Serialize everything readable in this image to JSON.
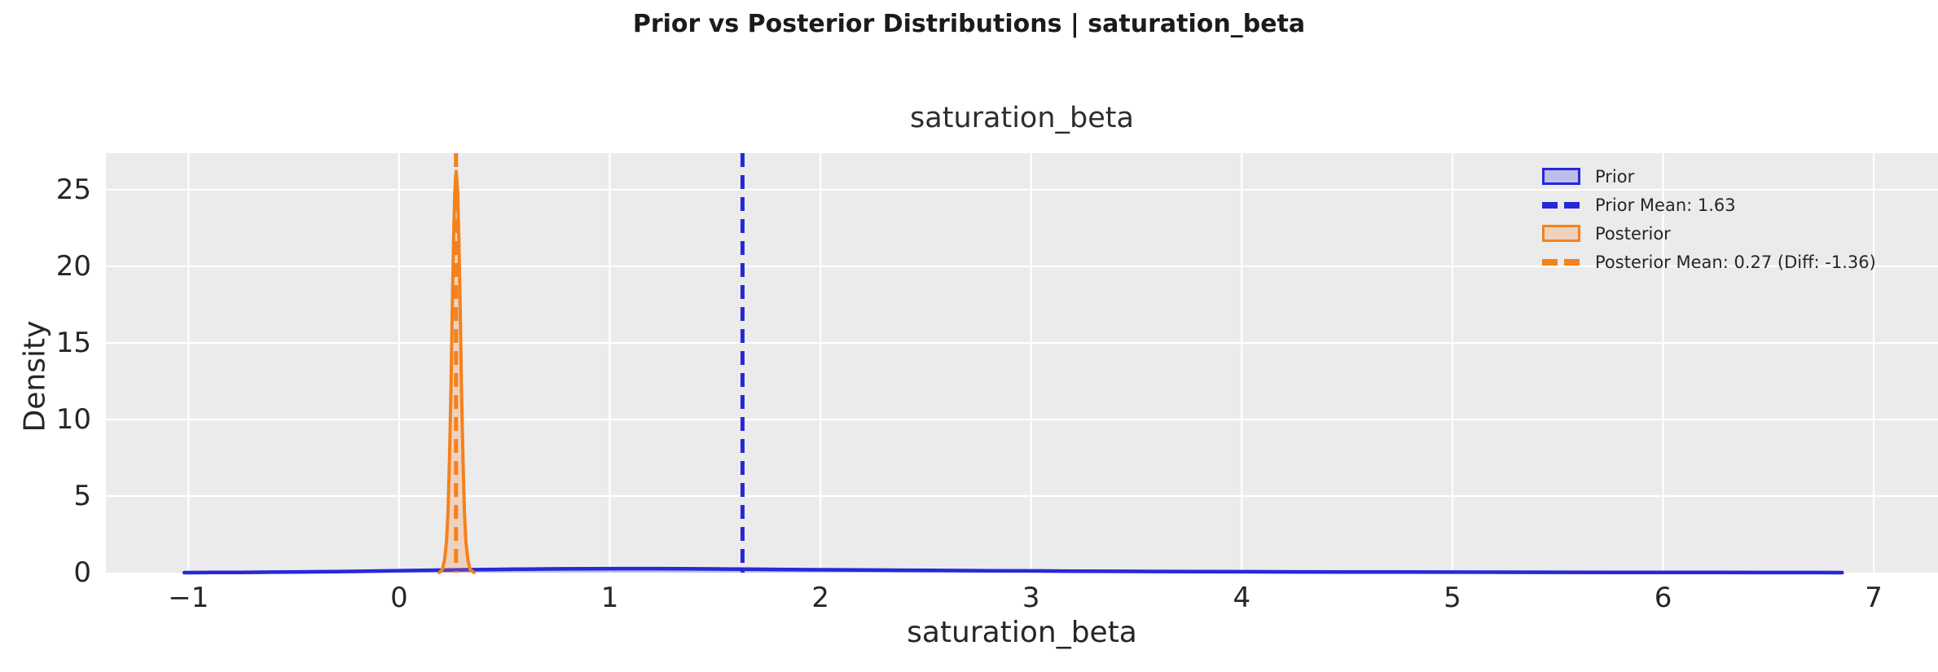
{
  "figure": {
    "title": "Prior vs Posterior Distributions | saturation_beta"
  },
  "axes": {
    "title": "saturation_beta",
    "xlabel": "saturation_beta",
    "ylabel": "Density"
  },
  "colors": {
    "plot_background": "#ebebeb",
    "grid": "#ffffff",
    "prior_line": "#2828d9",
    "prior_fill": "rgba(55,55,225,0.25)",
    "posterior_line": "#f5811c",
    "posterior_fill": "rgba(245,140,60,0.25)",
    "text": "#262626"
  },
  "chart_data": {
    "type": "area",
    "title": "saturation_beta",
    "xlabel": "saturation_beta",
    "ylabel": "Density",
    "xlim": [
      -1.392,
      7.305
    ],
    "ylim": [
      0,
      27.39
    ],
    "grid": true,
    "legend_position": "upper right",
    "xticks": {
      "values": [
        -1,
        0,
        1,
        2,
        3,
        4,
        5,
        6,
        7
      ],
      "labels": [
        "−1",
        "0",
        "1",
        "2",
        "3",
        "4",
        "5",
        "6",
        "7"
      ]
    },
    "yticks": {
      "values": [
        0,
        5,
        10,
        15,
        20,
        25
      ],
      "labels": [
        "0",
        "5",
        "10",
        "15",
        "20",
        "25"
      ]
    },
    "series": [
      {
        "name": "Prior",
        "kind": "kde",
        "line_color": "#2828d9",
        "fill_color": "rgba(55,55,225,0.25)",
        "line_width": 4.5,
        "points": [
          [
            -1.02,
            0
          ],
          [
            -0.9,
            0.008
          ],
          [
            -0.75,
            0.018
          ],
          [
            -0.6,
            0.032
          ],
          [
            -0.45,
            0.05
          ],
          [
            -0.3,
            0.07
          ],
          [
            -0.15,
            0.095
          ],
          [
            0,
            0.125
          ],
          [
            0.15,
            0.155
          ],
          [
            0.3,
            0.185
          ],
          [
            0.45,
            0.21
          ],
          [
            0.6,
            0.23
          ],
          [
            0.75,
            0.245
          ],
          [
            0.9,
            0.255
          ],
          [
            1.05,
            0.26
          ],
          [
            1.2,
            0.258
          ],
          [
            1.35,
            0.25
          ],
          [
            1.5,
            0.238
          ],
          [
            1.65,
            0.222
          ],
          [
            1.8,
            0.205
          ],
          [
            2,
            0.185
          ],
          [
            2.2,
            0.168
          ],
          [
            2.4,
            0.152
          ],
          [
            2.6,
            0.138
          ],
          [
            2.8,
            0.124
          ],
          [
            3,
            0.11
          ],
          [
            3.2,
            0.098
          ],
          [
            3.4,
            0.086
          ],
          [
            3.6,
            0.076
          ],
          [
            3.8,
            0.066
          ],
          [
            4,
            0.058
          ],
          [
            4.25,
            0.05
          ],
          [
            4.5,
            0.043
          ],
          [
            4.75,
            0.037
          ],
          [
            5,
            0.032
          ],
          [
            5.25,
            0.027
          ],
          [
            5.5,
            0.022
          ],
          [
            5.75,
            0.018
          ],
          [
            6,
            0.014
          ],
          [
            6.25,
            0.01
          ],
          [
            6.5,
            0.006
          ],
          [
            6.7,
            0.003
          ],
          [
            6.85,
            0
          ]
        ]
      },
      {
        "name": "Posterior",
        "kind": "kde",
        "line_color": "#f5811c",
        "fill_color": "rgba(245,140,60,0.25)",
        "line_width": 4,
        "points": [
          [
            0.19,
            0
          ],
          [
            0.205,
            0.2
          ],
          [
            0.215,
            0.8
          ],
          [
            0.225,
            2
          ],
          [
            0.232,
            4
          ],
          [
            0.239,
            7.5
          ],
          [
            0.246,
            12
          ],
          [
            0.252,
            17
          ],
          [
            0.258,
            21.5
          ],
          [
            0.264,
            24.8
          ],
          [
            0.271,
            26.2
          ],
          [
            0.278,
            24.8
          ],
          [
            0.284,
            21.5
          ],
          [
            0.29,
            17
          ],
          [
            0.296,
            12
          ],
          [
            0.303,
            7.5
          ],
          [
            0.31,
            4
          ],
          [
            0.317,
            2
          ],
          [
            0.327,
            0.8
          ],
          [
            0.337,
            0.2
          ],
          [
            0.355,
            0
          ]
        ]
      }
    ],
    "vlines": [
      {
        "name": "prior-mean-line",
        "x": 1.63,
        "color": "#2828d9",
        "style": "dashed",
        "label": "Prior Mean: 1.63"
      },
      {
        "name": "posterior-mean-line",
        "x": 0.27,
        "color": "#f5811c",
        "style": "dashed",
        "label": "Posterior Mean: 0.27 (Diff: -1.36)"
      }
    ],
    "stats": {
      "prior_mean": 1.63,
      "posterior_mean": 0.27,
      "difference": -1.36
    },
    "legend": [
      {
        "swatch": "patch",
        "line_color": "#2828d9",
        "fill_color": "rgba(55,55,225,0.25)",
        "label": "Prior"
      },
      {
        "swatch": "dashes",
        "line_color": "#2828d9",
        "fill_color": "#2828d9",
        "label": "Prior Mean: 1.63"
      },
      {
        "swatch": "patch",
        "line_color": "#f5811c",
        "fill_color": "rgba(245,140,60,0.25)",
        "label": "Posterior"
      },
      {
        "swatch": "dashes",
        "line_color": "#f5811c",
        "fill_color": "#f5811c",
        "label": "Posterior Mean: 0.27 (Diff: -1.36)"
      }
    ]
  }
}
